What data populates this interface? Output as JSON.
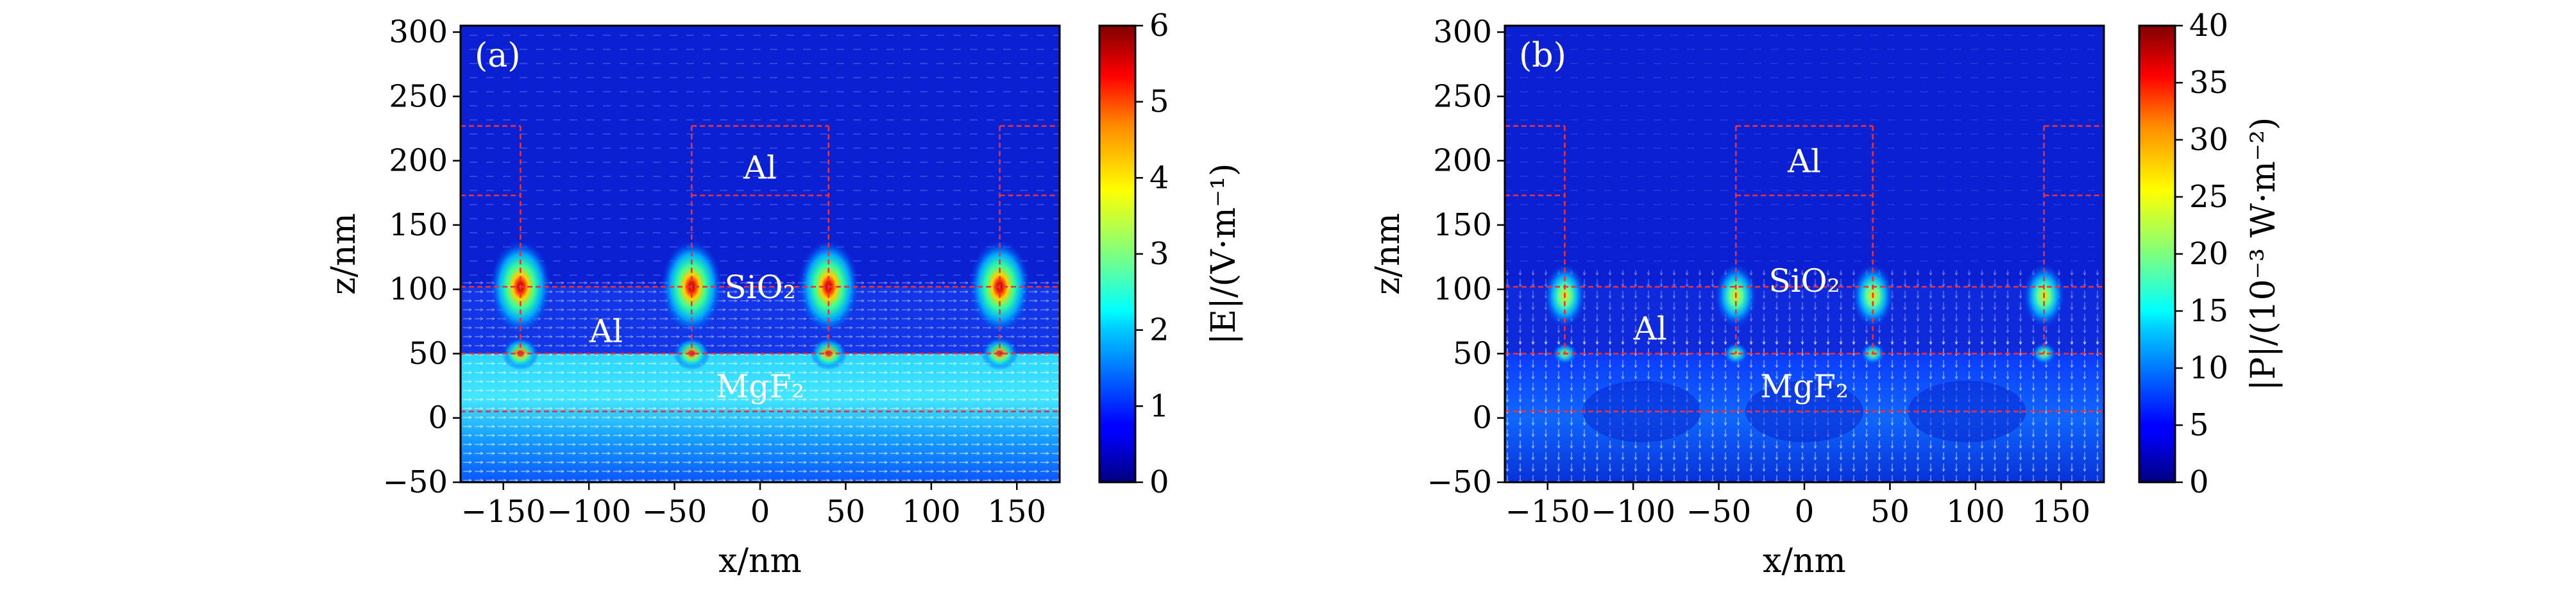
{
  "figure_title": "",
  "chart_data": [
    {
      "type": "heatmap",
      "panel_label": "(a)",
      "quantity": "|E|",
      "xlabel": "x/nm",
      "ylabel": "z/nm",
      "xlim": [
        -175,
        175
      ],
      "ylim": [
        -50,
        305
      ],
      "xticks": [
        -150,
        -100,
        -50,
        0,
        50,
        100,
        150
      ],
      "xtick_labels": [
        "−150",
        "−100",
        "−50",
        "0",
        "50",
        "100",
        "150"
      ],
      "yticks": [
        -50,
        0,
        50,
        100,
        150,
        200,
        250,
        300
      ],
      "ytick_labels": [
        "−50",
        "0",
        "50",
        "100",
        "150",
        "200",
        "250",
        "300"
      ],
      "colorbar": {
        "min": 0,
        "max": 6,
        "ticks": [
          0,
          1,
          2,
          3,
          4,
          5,
          6
        ],
        "tick_labels": [
          "0",
          "1",
          "2",
          "3",
          "4",
          "5",
          "6"
        ],
        "label": "|E|/(V·m⁻¹)",
        "colormap": "jet"
      },
      "annotations": [
        {
          "text": "Al",
          "x": 0,
          "z": 195
        },
        {
          "text": "SiO₂",
          "x": 0,
          "z": 102
        },
        {
          "text": "Al",
          "x": -90,
          "z": 68
        },
        {
          "text": "MgF₂",
          "x": 0,
          "z": 25
        }
      ],
      "hotspots": [
        {
          "x": -140,
          "z": 102,
          "value": 6
        },
        {
          "x": -40,
          "z": 102,
          "value": 6
        },
        {
          "x": 40,
          "z": 102,
          "value": 6
        },
        {
          "x": 140,
          "z": 102,
          "value": 6
        }
      ],
      "band": {
        "z_min": -50,
        "z_max": 50,
        "level": 1.8
      }
    },
    {
      "type": "heatmap",
      "panel_label": "(b)",
      "quantity": "|P|",
      "xlabel": "x/nm",
      "ylabel": "z/nm",
      "xlim": [
        -175,
        175
      ],
      "ylim": [
        -50,
        305
      ],
      "xticks": [
        -150,
        -100,
        -50,
        0,
        50,
        100,
        150
      ],
      "xtick_labels": [
        "−150",
        "−100",
        "−50",
        "0",
        "50",
        "100",
        "150"
      ],
      "yticks": [
        -50,
        0,
        50,
        100,
        150,
        200,
        250,
        300
      ],
      "ytick_labels": [
        "−50",
        "0",
        "50",
        "100",
        "150",
        "200",
        "250",
        "300"
      ],
      "colorbar": {
        "min": 0,
        "max": 40,
        "ticks": [
          0,
          5,
          10,
          15,
          20,
          25,
          30,
          35,
          40
        ],
        "tick_labels": [
          "0",
          "5",
          "10",
          "15",
          "20",
          "25",
          "30",
          "35",
          "40"
        ],
        "label": "|P|/(10⁻³ W·m⁻²)",
        "colormap": "jet"
      },
      "annotations": [
        {
          "text": "Al",
          "x": 0,
          "z": 200
        },
        {
          "text": "SiO₂",
          "x": 0,
          "z": 107
        },
        {
          "text": "Al",
          "x": -90,
          "z": 70
        },
        {
          "text": "MgF₂",
          "x": 0,
          "z": 25
        }
      ],
      "hotspots": [
        {
          "x": -140,
          "z": 95,
          "value": 30
        },
        {
          "x": -40,
          "z": 95,
          "value": 30
        },
        {
          "x": 40,
          "z": 95,
          "value": 30
        },
        {
          "x": 140,
          "z": 95,
          "value": 30
        }
      ],
      "band": {
        "z_min": -50,
        "z_max": 50,
        "level": 8
      }
    }
  ],
  "structure_outline_nm": {
    "color": "#e8323c",
    "horizontal_z": [
      227,
      173,
      102,
      50,
      5
    ],
    "vertical_x": [
      -140,
      -40,
      40,
      140
    ],
    "ridge_x": [
      -40,
      40
    ],
    "edge_blocks_x": [
      [
        -175,
        -140
      ],
      [
        140,
        175
      ]
    ]
  }
}
